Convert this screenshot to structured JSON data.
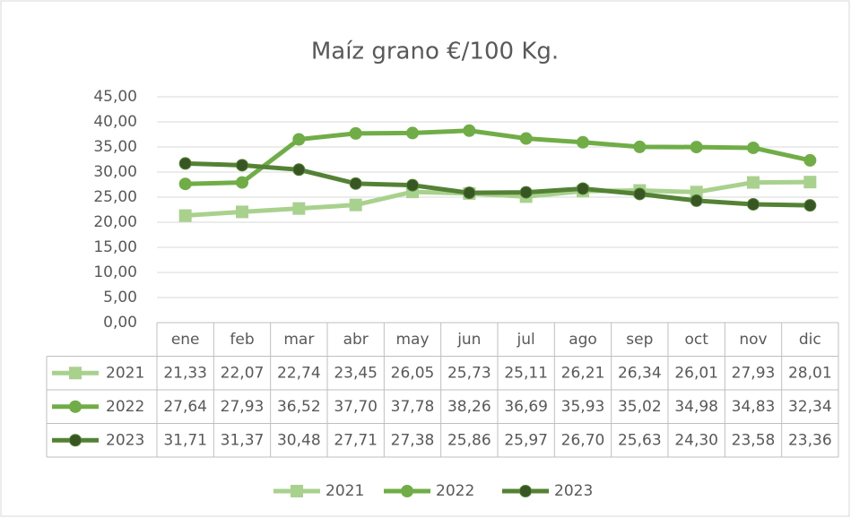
{
  "chart_data": {
    "type": "line",
    "title": "Maíz grano €/100 Kg.",
    "categories": [
      "ene",
      "feb",
      "mar",
      "abr",
      "may",
      "jun",
      "jul",
      "ago",
      "sep",
      "oct",
      "nov",
      "dic"
    ],
    "series": [
      {
        "name": "2021",
        "color": "#a9d18e",
        "marker": "square",
        "values": [
          21.33,
          22.07,
          22.74,
          23.45,
          26.05,
          25.73,
          25.11,
          26.21,
          26.34,
          26.01,
          27.93,
          28.01
        ],
        "value_labels": [
          "21,33",
          "22,07",
          "22,74",
          "23,45",
          "26,05",
          "25,73",
          "25,11",
          "26,21",
          "26,34",
          "26,01",
          "27,93",
          "28,01"
        ]
      },
      {
        "name": "2022",
        "color": "#70ad47",
        "marker": "circle",
        "values": [
          27.64,
          27.93,
          36.52,
          37.7,
          37.78,
          38.26,
          36.69,
          35.93,
          35.02,
          34.98,
          34.83,
          32.34
        ],
        "value_labels": [
          "27,64",
          "27,93",
          "36,52",
          "37,70",
          "37,78",
          "38,26",
          "36,69",
          "35,93",
          "35,02",
          "34,98",
          "34,83",
          "32,34"
        ]
      },
      {
        "name": "2023",
        "color": "#548235",
        "marker": "circle",
        "values": [
          31.71,
          31.37,
          30.48,
          27.71,
          27.38,
          25.86,
          25.97,
          26.7,
          25.63,
          24.3,
          23.58,
          23.36
        ],
        "value_labels": [
          "31,71",
          "31,37",
          "30,48",
          "27,71",
          "27,38",
          "25,86",
          "25,97",
          "26,70",
          "25,63",
          "24,30",
          "23,58",
          "23,36"
        ]
      }
    ],
    "ylim": [
      0,
      45
    ],
    "yticks": [
      {
        "value": 0,
        "label": "0,00"
      },
      {
        "value": 5,
        "label": "5,00"
      },
      {
        "value": 10,
        "label": "10,00"
      },
      {
        "value": 15,
        "label": "15,00"
      },
      {
        "value": 20,
        "label": "20,00"
      },
      {
        "value": 25,
        "label": "25,00"
      },
      {
        "value": 30,
        "label": "30,00"
      },
      {
        "value": 35,
        "label": "35,00"
      },
      {
        "value": 40,
        "label": "40,00"
      },
      {
        "value": 45,
        "label": "45,00"
      }
    ],
    "grid": true,
    "legend": "bottom"
  }
}
